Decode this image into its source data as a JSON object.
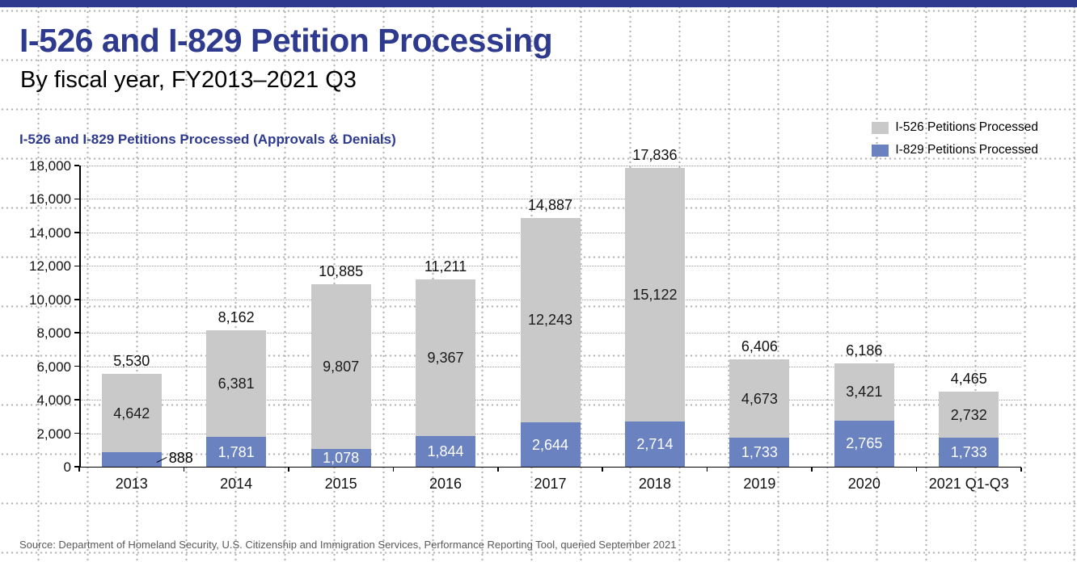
{
  "page": {
    "title": "I-526 and I-829 Petition Processing",
    "subtitle": "By fiscal year, FY2013–2021 Q3",
    "source": "Source: Department of Homeland Security, U.S. Citizenship and Immigration Services, Performance Reporting Tool, queried September 2021"
  },
  "colors": {
    "navy": "#2d3a8e",
    "i526_gray": "#c9c9c9",
    "i829_blue": "#6a82c0",
    "grid_dot": "#b4b4b4"
  },
  "chart_data": {
    "type": "bar",
    "stacked": true,
    "title": "I-526 and I-829 Petitions Processed (Approvals & Denials)",
    "categories": [
      "2013",
      "2014",
      "2015",
      "2016",
      "2017",
      "2018",
      "2019",
      "2020",
      "2021 Q1-Q3"
    ],
    "series": [
      {
        "name": "I-829 Petitions Processed",
        "color": "#6a82c0",
        "values": [
          888,
          1781,
          1078,
          1844,
          2644,
          2714,
          1733,
          2765,
          1733
        ]
      },
      {
        "name": "I-526 Petitions Processed",
        "color": "#c9c9c9",
        "values": [
          4642,
          6381,
          9807,
          9367,
          12243,
          15122,
          4673,
          3421,
          2732
        ]
      }
    ],
    "totals": [
      5530,
      8162,
      10885,
      11211,
      14887,
      17836,
      6406,
      6186,
      4465
    ],
    "ylim": [
      0,
      18000
    ],
    "ytick_interval": 2000,
    "ytick_labels": [
      "0",
      "2,000",
      "4,000",
      "6,000",
      "8,000",
      "10,000",
      "12,000",
      "14,000",
      "16,000",
      "18,000"
    ],
    "legend": [
      {
        "label": "I-526 Petitions Processed",
        "color": "#c9c9c9"
      },
      {
        "label": "I-829 Petitions Processed",
        "color": "#6a82c0"
      }
    ],
    "legend_position": "top-right",
    "grid": "dotted horizontal gridlines at every 2,000",
    "annotations": [
      {
        "category": "2013",
        "series": "I-829 Petitions Processed",
        "text": "888",
        "style": "leader-line callout"
      }
    ]
  }
}
